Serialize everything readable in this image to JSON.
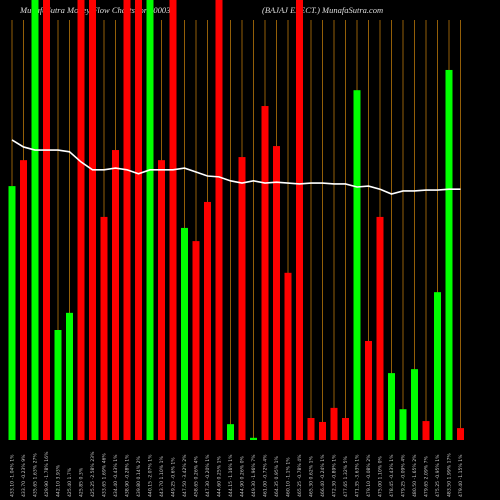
{
  "title": "MunafaSutra  Money Flow  Charts for 500031",
  "subtitle": "(BAJAJ ELECT.) MunafaSutra.com",
  "chart_data": {
    "type": "bar",
    "categories": [
      "433.10 -1.04% 1%",
      "433.70 -0.23% 9%",
      "435.65 1.63% 27%",
      "429.90 -1.78% 16%",
      "442.10 3.93%",
      "425.40 1.7%",
      "425.85 0.3%",
      "425.25 -2.58% 23%",
      "433.65 1.69% 46%",
      "434.40 -0.43% 1%",
      "438.90 -0.28% 1%",
      "439.80 0.14% 2%",
      "440.15 -2.07% 1%",
      "443.70 1.10% 1%",
      "449.25 -0.6% 1%",
      "447.50 -3.42% 2%",
      "458.65 0.26% 4%",
      "447.30 -0.20% 1%",
      "444.60 0.25% 1%",
      "444.15 -1.16% 1%",
      "444.90 0.26% 0%",
      "449.30 -1.96% 7%",
      "461.00 -0.72% 4%",
      "464.35 0.95% 1%",
      "460.10 -1.1% 1%",
      "465.25 -0.78% 4%",
      "465.30 0.62% 1%",
      "466.40 -0.24% 1%",
      "472.30 -0.89% 1%",
      "477.65 1.32% 5%",
      "471.35 -3.63% 1%",
      "479.10 -0.08% 2%",
      "475.00 1.10% 0%",
      "478.45 -0.43% 1%",
      "479.25 -0.09% 4%",
      "480.50 -1.65% 2%",
      "479.65 2.09% 7%",
      "475.25 -0.95% 1%",
      "483.50 1.99% 17%",
      "479.40 -1.15% 1%"
    ],
    "series": [
      {
        "name": "money flow",
        "colors": [
          "#00ff00",
          "#ff0000",
          "#00ff00",
          "#ff0000",
          "#00ff00",
          "#00ff00",
          "#ff0000",
          "#ff0000",
          "#ff0000",
          "#ff0000",
          "#ff0000",
          "#ff0000",
          "#00ff00",
          "#ff0000",
          "#ff0000",
          "#00ff00",
          "#ff0000",
          "#ff0000",
          "#ff0000",
          "#00ff00",
          "#ff0000",
          "#00ff00",
          "#ff0000",
          "#ff0000",
          "#ff0000",
          "#ff0000",
          "#ff0000",
          "#ff0000",
          "#ff0000",
          "#ff0000",
          "#00ff00",
          "#ff0000",
          "#ff0000",
          "#00ff00",
          "#00ff00",
          "#00ff00",
          "#ff0000",
          "#00ff00",
          "#00ff00",
          "#ff0000"
        ],
        "values": [
          57.7,
          63.6,
          100,
          100,
          25,
          28.9,
          100,
          100,
          50.7,
          65.9,
          100,
          100,
          100,
          63.6,
          100,
          48.2,
          45.2,
          54.1,
          100,
          3.6,
          64.3,
          0.5,
          75.9,
          66.8,
          38,
          100,
          5,
          4.1,
          7.3,
          5,
          79.5,
          22.5,
          50.7,
          15.2,
          7,
          16.1,
          4.3,
          33.6,
          84.1,
          2.7
        ]
      },
      {
        "name": "trend",
        "color": "#ffffff",
        "values": [
          68.2,
          66.6,
          65.9,
          65.9,
          65.9,
          65.5,
          63.2,
          61.4,
          61.4,
          61.8,
          61.4,
          60.5,
          61.4,
          61.4,
          61.4,
          61.8,
          60.9,
          60,
          59.8,
          58.9,
          58.4,
          58.9,
          58.4,
          58.6,
          58.4,
          58.2,
          58.4,
          58.4,
          58.2,
          58.2,
          57.5,
          57.7,
          57,
          55.9,
          56.6,
          56.6,
          56.8,
          56.8,
          57,
          57
        ]
      }
    ],
    "ylim": [
      0,
      100
    ],
    "gridline_color": "#b8760a"
  }
}
